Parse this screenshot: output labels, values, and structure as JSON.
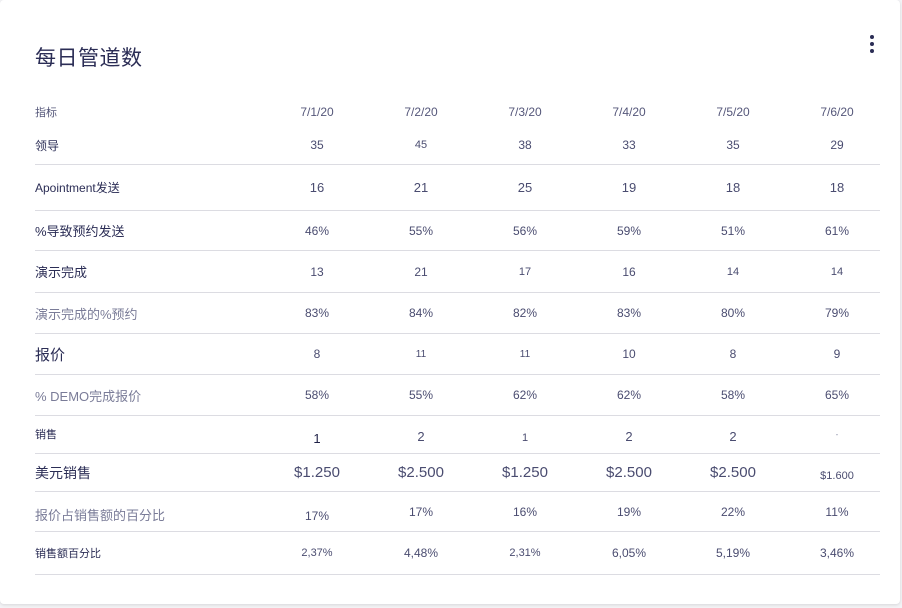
{
  "title": "每日管道数",
  "header": {
    "label": "指标",
    "dates": [
      "7/1/20",
      "7/2/20",
      "7/3/20",
      "7/4/20",
      "7/5/20",
      "7/6/20"
    ]
  },
  "rows": [
    {
      "label": "领导",
      "values": [
        "35",
        "45",
        "38",
        "33",
        "35",
        "29"
      ]
    },
    {
      "label": "Apointment发送",
      "values": [
        "16",
        "21",
        "25",
        "19",
        "18",
        "18"
      ]
    },
    {
      "label": "%导致预约发送",
      "values": [
        "46%",
        "55%",
        "56%",
        "59%",
        "51%",
        "61%"
      ]
    },
    {
      "label": "演示完成",
      "values": [
        "13",
        "21",
        "17",
        "16",
        "14",
        "14"
      ]
    },
    {
      "label": "演示完成的%预约",
      "values": [
        "83%",
        "84%",
        "82%",
        "83%",
        "80%",
        "79%"
      ]
    },
    {
      "label": "报价",
      "values": [
        "8",
        "11",
        "11",
        "10",
        "8",
        "9"
      ]
    },
    {
      "label": "% DEMO完成报价",
      "values": [
        "58%",
        "55%",
        "62%",
        "62%",
        "58%",
        "65%"
      ]
    },
    {
      "label": "销售",
      "values": [
        "1",
        "2",
        "1",
        "2",
        "2",
        "-"
      ]
    },
    {
      "label": "美元销售",
      "values": [
        "$1.250",
        "$2.500",
        "$1.250",
        "$2.500",
        "$2.500",
        "$1.600"
      ]
    },
    {
      "label": "报价占销售额的百分比",
      "values": [
        "17%",
        "17%",
        "16%",
        "19%",
        "22%",
        "11%"
      ]
    },
    {
      "label": "销售额百分比",
      "values": [
        "2,37%",
        "4,48%",
        "2,31%",
        "6,05%",
        "5,19%",
        "3,46%"
      ]
    }
  ]
}
